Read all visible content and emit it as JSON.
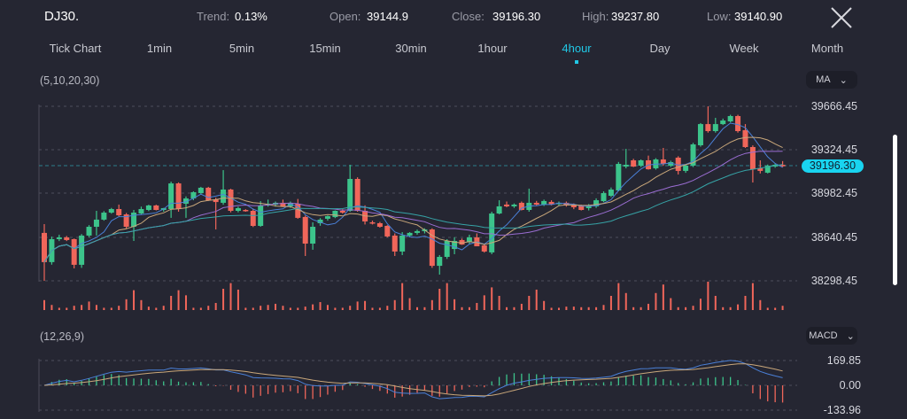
{
  "header": {
    "symbol": "DJ30.",
    "trend_label": "Trend:",
    "trend_value": "0.13%",
    "open_label": "Open:",
    "open_value": "39144.9",
    "close_label": "Close:",
    "close_value": "39196.30",
    "high_label": "High:",
    "high_value": "39237.80",
    "low_label": "Low:",
    "low_value": "39140.90",
    "close_icon": "close-x-icon"
  },
  "timeframes": [
    {
      "label": "Tick Chart"
    },
    {
      "label": "1min"
    },
    {
      "label": "5min"
    },
    {
      "label": "15min"
    },
    {
      "label": "30min"
    },
    {
      "label": "1hour"
    },
    {
      "label": "4hour",
      "active": true
    },
    {
      "label": "Day"
    },
    {
      "label": "Week"
    },
    {
      "label": "Month"
    }
  ],
  "main_panel": {
    "params": "(5,10,20,30)",
    "indicator": "MA",
    "price_ticks": [
      "39666.45",
      "39324.45",
      "38982.45",
      "38640.45",
      "38298.45"
    ],
    "current_price": "39196.30"
  },
  "macd_panel": {
    "params": "(12,26,9)",
    "indicator": "MACD",
    "ticks": [
      "169.85",
      "0.00",
      "-133.96"
    ]
  },
  "colors": {
    "background": "#252632",
    "accent": "#21c8e6",
    "up": "#3cc48b",
    "down": "#f0665a",
    "ma5": "#4a80d8",
    "ma10": "#c9a77a",
    "ma20": "#9a6dd2",
    "ma30": "#36a3a6"
  },
  "chart_data": [
    {
      "type": "candlestick",
      "ylim": [
        38298.45,
        39666.45
      ],
      "ma_periods": [
        5,
        10,
        20,
        30
      ],
      "grid": true,
      "ohlc": [
        [
          38674,
          38743,
          38298,
          38445
        ],
        [
          38445,
          38645,
          38425,
          38625
        ],
        [
          38625,
          38660,
          38610,
          38639
        ],
        [
          38639,
          38650,
          38610,
          38618
        ],
        [
          38625,
          38630,
          38396,
          38424
        ],
        [
          38424,
          38665,
          38400,
          38653
        ],
        [
          38653,
          38735,
          38640,
          38722
        ],
        [
          38722,
          38847,
          38653,
          38778
        ],
        [
          38778,
          38845,
          38770,
          38833
        ],
        [
          38833,
          38870,
          38825,
          38861
        ],
        [
          38861,
          38896,
          38805,
          38812
        ],
        [
          38819,
          38830,
          38705,
          38722
        ],
        [
          38722,
          38854,
          38611,
          38833
        ],
        [
          38826,
          38880,
          38820,
          38861
        ],
        [
          38854,
          38895,
          38845,
          38889
        ],
        [
          38889,
          38895,
          38850,
          38854
        ],
        [
          38854,
          38870,
          38840,
          38868
        ],
        [
          38861,
          39076,
          38792,
          39062
        ],
        [
          39062,
          39070,
          38840,
          38861
        ],
        [
          38903,
          38960,
          38792,
          38944
        ],
        [
          38944,
          39000,
          38930,
          38993
        ],
        [
          38986,
          39035,
          38980,
          39028
        ],
        [
          39028,
          39035,
          38925,
          38930
        ],
        [
          38937,
          38950,
          38701,
          38916
        ],
        [
          38910,
          39166,
          38895,
          39014
        ],
        [
          39014,
          39020,
          38835,
          38847
        ],
        [
          38847,
          38880,
          38835,
          38868
        ],
        [
          38854,
          38860,
          38840,
          38847
        ],
        [
          38847,
          38860,
          38720,
          38729
        ],
        [
          38729,
          38923,
          38722,
          38889
        ],
        [
          38889,
          38935,
          38880,
          38903
        ],
        [
          38896,
          38920,
          38880,
          38910
        ],
        [
          38910,
          38935,
          38880,
          38882
        ],
        [
          38882,
          38920,
          38870,
          38910
        ],
        [
          38903,
          38940,
          38785,
          38792
        ],
        [
          38799,
          38810,
          38493,
          38590
        ],
        [
          38590,
          38757,
          38542,
          38722
        ],
        [
          38750,
          38790,
          38730,
          38778
        ],
        [
          38785,
          38810,
          38770,
          38805
        ],
        [
          38798,
          38850,
          38790,
          38847
        ],
        [
          38847,
          38860,
          38825,
          38833
        ],
        [
          38847,
          39208,
          38840,
          39097
        ],
        [
          39097,
          39110,
          38840,
          38847
        ],
        [
          38847,
          38890,
          38740,
          38764
        ],
        [
          38757,
          38770,
          38740,
          38750
        ],
        [
          38750,
          38760,
          38715,
          38722
        ],
        [
          38729,
          38735,
          38640,
          38646
        ],
        [
          38653,
          38670,
          38493,
          38528
        ],
        [
          38528,
          38680,
          38500,
          38653
        ],
        [
          38653,
          38680,
          38640,
          38674
        ],
        [
          38674,
          38700,
          38660,
          38688
        ],
        [
          38688,
          38710,
          38670,
          38701
        ],
        [
          38701,
          38710,
          38400,
          38416
        ],
        [
          38416,
          38500,
          38347,
          38486
        ],
        [
          38486,
          38625,
          38470,
          38611
        ],
        [
          38548,
          38640,
          38507,
          38611
        ],
        [
          38618,
          38630,
          38580,
          38583
        ],
        [
          38604,
          38660,
          38590,
          38639
        ],
        [
          38639,
          38670,
          38570,
          38569
        ],
        [
          38576,
          38590,
          38520,
          38528
        ],
        [
          38521,
          38840,
          38507,
          38826
        ],
        [
          38826,
          38930,
          38820,
          38882
        ],
        [
          38896,
          38920,
          38875,
          38882
        ],
        [
          38882,
          38905,
          38870,
          38896
        ],
        [
          38910,
          38920,
          38850,
          38854
        ],
        [
          38854,
          39021,
          38840,
          38910
        ],
        [
          38910,
          38925,
          38890,
          38896
        ],
        [
          38896,
          38935,
          38885,
          38924
        ],
        [
          38917,
          38930,
          38890,
          38896
        ],
        [
          38903,
          38920,
          38890,
          38910
        ],
        [
          38910,
          38920,
          38880,
          38889
        ],
        [
          38896,
          38905,
          38860,
          38875
        ],
        [
          38889,
          38895,
          38850,
          38854
        ],
        [
          38868,
          38900,
          38850,
          38889
        ],
        [
          38882,
          38945,
          38870,
          38930
        ],
        [
          38923,
          39000,
          38915,
          38986
        ],
        [
          38965,
          39030,
          38955,
          39014
        ],
        [
          39007,
          39230,
          39000,
          39215
        ],
        [
          39194,
          39333,
          39180,
          39208
        ],
        [
          39243,
          39255,
          39190,
          39194
        ],
        [
          39201,
          39250,
          39190,
          39243
        ],
        [
          39243,
          39280,
          39170,
          39173
        ],
        [
          39180,
          39260,
          39170,
          39250
        ],
        [
          39250,
          39340,
          39200,
          39215
        ],
        [
          39201,
          39240,
          39190,
          39229
        ],
        [
          39264,
          39275,
          39132,
          39160
        ],
        [
          39160,
          39210,
          39145,
          39201
        ],
        [
          39201,
          39380,
          39190,
          39368
        ],
        [
          39361,
          39535,
          39350,
          39527
        ],
        [
          39527,
          39666,
          39460,
          39472
        ],
        [
          39472,
          39576,
          39460,
          39527
        ],
        [
          39527,
          39570,
          39520,
          39555
        ],
        [
          39548,
          39600,
          39540,
          39590
        ],
        [
          39590,
          39600,
          39460,
          39472
        ],
        [
          39479,
          39527,
          39340,
          39347
        ],
        [
          39347,
          39360,
          39069,
          39173
        ],
        [
          39180,
          39243,
          39140,
          39160
        ],
        [
          39146,
          39210,
          39140,
          39201
        ],
        [
          39194,
          39220,
          39185,
          39208
        ],
        [
          39208,
          39237,
          39190,
          39196.3
        ]
      ],
      "volume_relative": [
        35,
        18,
        8,
        8,
        15,
        18,
        30,
        18,
        8,
        8,
        15,
        38,
        70,
        35,
        12,
        8,
        15,
        50,
        70,
        52,
        8,
        8,
        15,
        25,
        75,
        95,
        72,
        8,
        8,
        15,
        18,
        22,
        15,
        8,
        8,
        12,
        20,
        28,
        18,
        8,
        8,
        15,
        30,
        32,
        8,
        8,
        15,
        35,
        95,
        42,
        10,
        10,
        35,
        75,
        95,
        38,
        10,
        10,
        25,
        52,
        80,
        50,
        10,
        10,
        22,
        50,
        72,
        32,
        8,
        8,
        12,
        12,
        10,
        10,
        10,
        18,
        50,
        95,
        60,
        10,
        10,
        22,
        60,
        90,
        42,
        10,
        10,
        15,
        40,
        100,
        50,
        10,
        10,
        20,
        50,
        95,
        35,
        8,
        8,
        15
      ]
    },
    {
      "type": "macd",
      "params": [
        12,
        26,
        9
      ],
      "ylim": [
        -133.96,
        169.85
      ]
    }
  ]
}
